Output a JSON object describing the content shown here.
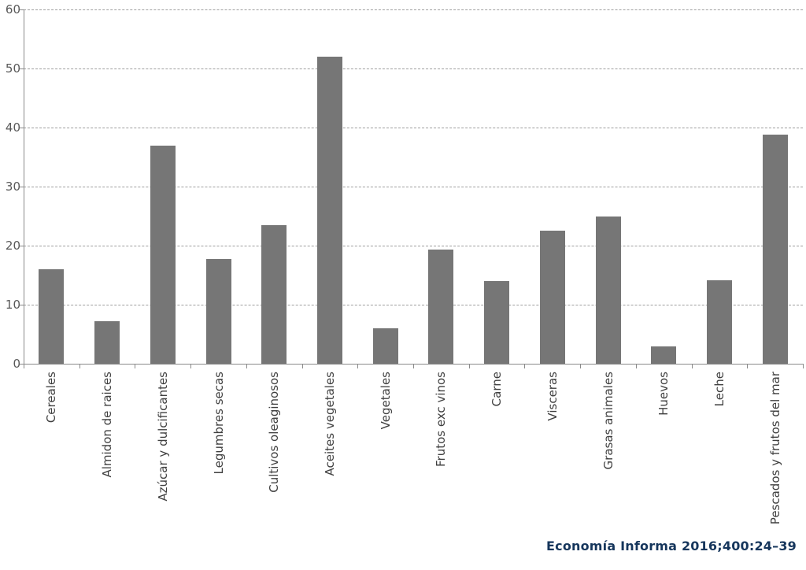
{
  "chart_data": {
    "type": "bar",
    "title": "",
    "xlabel": "",
    "ylabel": "",
    "categories": [
      "Cereales",
      "Almidon de raices",
      "Azúcar y dulcificantes",
      "Legumbres secas",
      "Cultivos oleaginosos",
      "Aceites vegetales",
      "Vegetales",
      "Frutos exc vinos",
      "Carne",
      "Visceras",
      "Grasas animales",
      "Huevos",
      "Leche",
      "Pescados y frutos del mar"
    ],
    "values": [
      16,
      7.2,
      37,
      17.8,
      23.5,
      52,
      6,
      19.3,
      14,
      22.5,
      25,
      3,
      14.2,
      38.8
    ],
    "ylim": [
      0,
      60
    ],
    "yticks": [
      0,
      10,
      20,
      30,
      40,
      50,
      60
    ],
    "grid": "horizontal-dashed",
    "legend": "none",
    "colors": {
      "bar": "#767676",
      "gridline": "#9e9e9e",
      "axis": "#8a8a8a",
      "ytick_label": "#595959",
      "xtick_label": "#3f3f3f"
    }
  },
  "caption": {
    "text": "Economía Informa 2016;400:24–39",
    "color": "#16365c"
  }
}
